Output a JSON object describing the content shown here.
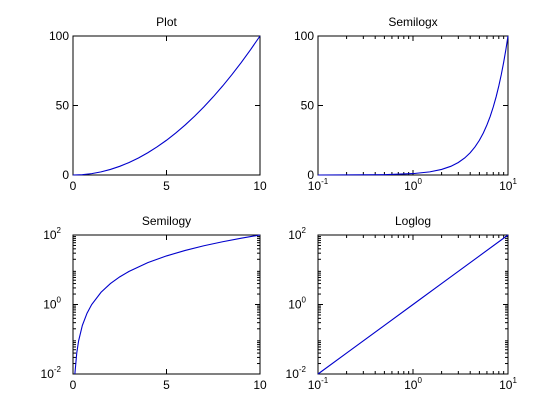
{
  "figure": {
    "background": "#ffffff",
    "axes_color": "#000000",
    "line_color": "#0000cc"
  },
  "chart_data": [
    {
      "type": "line",
      "title": "Plot",
      "xscale": "linear",
      "yscale": "linear",
      "xlim": [
        0,
        10
      ],
      "ylim": [
        0,
        100
      ],
      "xticks": [
        {
          "value": 0,
          "label": "0"
        },
        {
          "value": 5,
          "label": "5"
        },
        {
          "value": 10,
          "label": "10"
        }
      ],
      "yticks": [
        {
          "value": 0,
          "label": "0"
        },
        {
          "value": 50,
          "label": "50"
        },
        {
          "value": 100,
          "label": "100"
        }
      ],
      "grid": false,
      "series": [
        {
          "x": [
            0,
            0.5,
            1,
            1.5,
            2,
            2.5,
            3,
            3.5,
            4,
            4.5,
            5,
            5.5,
            6,
            6.5,
            7,
            7.5,
            8,
            8.5,
            9,
            9.5,
            10
          ],
          "y": [
            0,
            0.25,
            1,
            2.25,
            4,
            6.25,
            9,
            12.25,
            16,
            20.25,
            25,
            30.25,
            36,
            42.25,
            49,
            56.25,
            64,
            72.25,
            81,
            90.25,
            100
          ]
        }
      ]
    },
    {
      "type": "line",
      "title": "Semilogx",
      "xscale": "log",
      "yscale": "linear",
      "xlim": [
        0.1,
        10
      ],
      "ylim": [
        0,
        100
      ],
      "xticks": [
        {
          "value": 0.1,
          "base": "10",
          "exp": "-1"
        },
        {
          "value": 1,
          "base": "10",
          "exp": "0"
        },
        {
          "value": 10,
          "base": "10",
          "exp": "1"
        }
      ],
      "yticks": [
        {
          "value": 0,
          "label": "0"
        },
        {
          "value": 50,
          "label": "50"
        },
        {
          "value": 100,
          "label": "100"
        }
      ],
      "grid": false,
      "series": [
        {
          "x": [
            0.1,
            0.5,
            1,
            1.5,
            2,
            2.5,
            3,
            3.5,
            4,
            4.5,
            5,
            5.5,
            6,
            6.5,
            7,
            7.5,
            8,
            8.5,
            9,
            9.5,
            10
          ],
          "y": [
            0.01,
            0.25,
            1,
            2.25,
            4,
            6.25,
            9,
            12.25,
            16,
            20.25,
            25,
            30.25,
            36,
            42.25,
            49,
            56.25,
            64,
            72.25,
            81,
            90.25,
            100
          ]
        }
      ]
    },
    {
      "type": "line",
      "title": "Semilogy",
      "xscale": "linear",
      "yscale": "log",
      "xlim": [
        0,
        10
      ],
      "ylim": [
        0.01,
        100
      ],
      "xticks": [
        {
          "value": 0,
          "label": "0"
        },
        {
          "value": 5,
          "label": "5"
        },
        {
          "value": 10,
          "label": "10"
        }
      ],
      "yticks": [
        {
          "value": 0.01,
          "base": "10",
          "exp": "-2"
        },
        {
          "value": 1,
          "base": "10",
          "exp": "0"
        },
        {
          "value": 100,
          "base": "10",
          "exp": "2"
        }
      ],
      "grid": false,
      "series": [
        {
          "x": [
            0.1,
            0.2,
            0.3,
            0.5,
            0.75,
            1,
            1.5,
            2,
            2.5,
            3,
            4,
            5,
            6,
            7,
            8,
            9,
            10
          ],
          "y": [
            0.01,
            0.04,
            0.09,
            0.25,
            0.5625,
            1,
            2.25,
            4,
            6.25,
            9,
            16,
            25,
            36,
            49,
            64,
            81,
            100
          ]
        }
      ]
    },
    {
      "type": "line",
      "title": "Loglog",
      "xscale": "log",
      "yscale": "log",
      "xlim": [
        0.1,
        10
      ],
      "ylim": [
        0.01,
        100
      ],
      "xticks": [
        {
          "value": 0.1,
          "base": "10",
          "exp": "-1"
        },
        {
          "value": 1,
          "base": "10",
          "exp": "0"
        },
        {
          "value": 10,
          "base": "10",
          "exp": "1"
        }
      ],
      "yticks": [
        {
          "value": 0.01,
          "base": "10",
          "exp": "-2"
        },
        {
          "value": 1,
          "base": "10",
          "exp": "0"
        },
        {
          "value": 100,
          "base": "10",
          "exp": "2"
        }
      ],
      "grid": false,
      "series": [
        {
          "x": [
            0.1,
            0.2,
            0.5,
            1,
            2,
            5,
            10
          ],
          "y": [
            0.01,
            0.04,
            0.25,
            1,
            4,
            25,
            100
          ]
        }
      ]
    }
  ]
}
